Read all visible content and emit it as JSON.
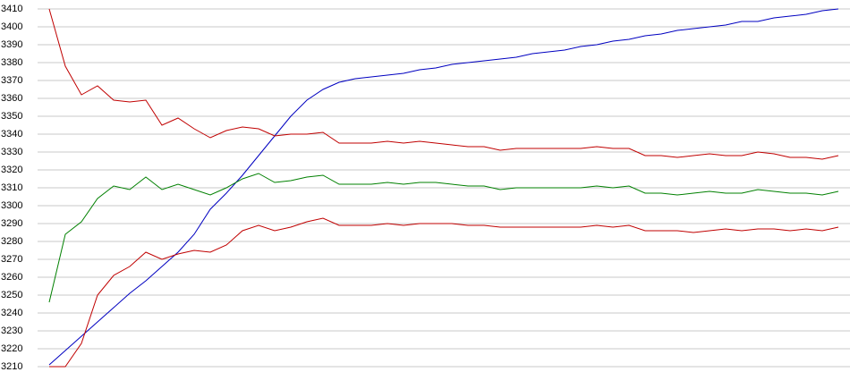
{
  "chart_data": {
    "type": "line",
    "ylim": [
      3210,
      3410
    ],
    "yticks": [
      3210,
      3220,
      3230,
      3240,
      3250,
      3260,
      3270,
      3280,
      3290,
      3300,
      3310,
      3320,
      3330,
      3340,
      3350,
      3360,
      3370,
      3380,
      3390,
      3400,
      3410
    ],
    "grid": true,
    "series": [
      {
        "color": "#0000c0",
        "values": [
          3211,
          3219,
          3227,
          3235,
          3243,
          3251,
          3258,
          3266,
          3274,
          3284,
          3298,
          3307,
          3317,
          3328,
          3339,
          3350,
          3359,
          3365,
          3369,
          3371,
          3372,
          3373,
          3374,
          3376,
          3377,
          3379,
          3380,
          3381,
          3382,
          3383,
          3385,
          3386,
          3387,
          3389,
          3390,
          3392,
          3393,
          3395,
          3396,
          3398,
          3399,
          3400,
          3401,
          3403,
          3403,
          3405,
          3406,
          3407,
          3409,
          3410
        ]
      },
      {
        "color": "#c00000",
        "values": [
          3410,
          3378,
          3362,
          3367,
          3359,
          3358,
          3359,
          3345,
          3349,
          3343,
          3338,
          3342,
          3344,
          3343,
          3339,
          3340,
          3340,
          3341,
          3335,
          3335,
          3335,
          3336,
          3335,
          3336,
          3335,
          3334,
          3333,
          3333,
          3331,
          3332,
          3332,
          3332,
          3332,
          3332,
          3333,
          3332,
          3332,
          3328,
          3328,
          3327,
          3328,
          3329,
          3328,
          3328,
          3330,
          3329,
          3327,
          3327,
          3326,
          3328
        ]
      },
      {
        "color": "#008000",
        "values": [
          3246,
          3284,
          3291,
          3304,
          3311,
          3309,
          3316,
          3309,
          3312,
          3309,
          3306,
          3310,
          3315,
          3318,
          3313,
          3314,
          3316,
          3317,
          3312,
          3312,
          3312,
          3313,
          3312,
          3313,
          3313,
          3312,
          3311,
          3311,
          3309,
          3310,
          3310,
          3310,
          3310,
          3310,
          3311,
          3310,
          3311,
          3307,
          3307,
          3306,
          3307,
          3308,
          3307,
          3307,
          3309,
          3308,
          3307,
          3307,
          3306,
          3308
        ]
      },
      {
        "color": "#c00000",
        "values": [
          3210,
          3210,
          3223,
          3250,
          3261,
          3266,
          3274,
          3270,
          3273,
          3275,
          3274,
          3278,
          3286,
          3289,
          3286,
          3288,
          3291,
          3293,
          3289,
          3289,
          3289,
          3290,
          3289,
          3290,
          3290,
          3290,
          3289,
          3289,
          3288,
          3288,
          3288,
          3288,
          3288,
          3288,
          3289,
          3288,
          3289,
          3286,
          3286,
          3286,
          3285,
          3286,
          3287,
          3286,
          3287,
          3287,
          3286,
          3287,
          3286,
          3288
        ]
      }
    ]
  }
}
